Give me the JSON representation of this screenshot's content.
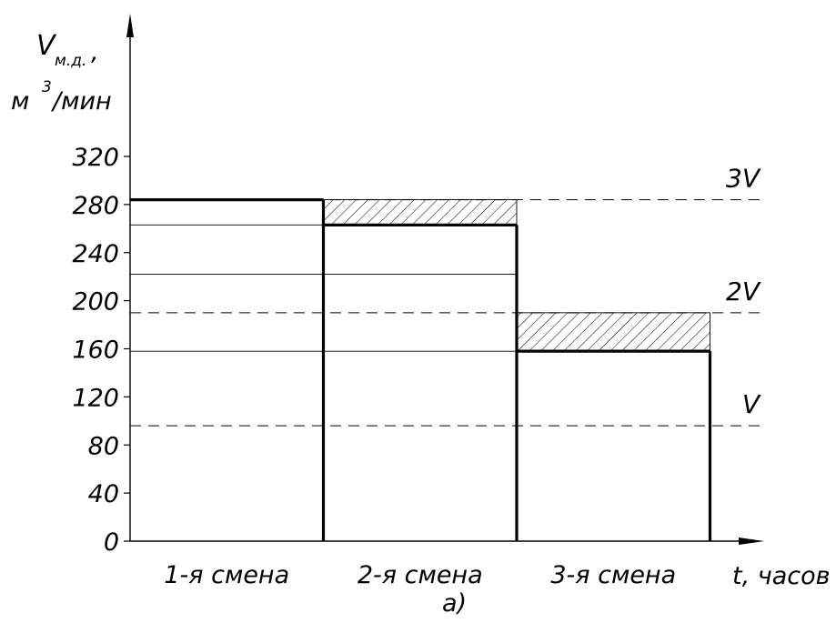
{
  "chart_data": {
    "type": "step",
    "title": "",
    "ylabel": {
      "symbol": "V",
      "subscript": "м.д.",
      "separator": ",",
      "unit_base": "м",
      "unit_exp": "3",
      "unit_rest": "/мин"
    },
    "xlabel": "t, часов",
    "sub_caption": "а)",
    "ylim": [
      0,
      320
    ],
    "y_ticks": [
      0,
      40,
      80,
      120,
      160,
      200,
      240,
      280,
      320
    ],
    "categories": [
      "1-я смена",
      "2-я смена",
      "3-я смена"
    ],
    "values": [
      284,
      263,
      158
    ],
    "reference_lines": [
      {
        "label": "3V",
        "value": 284
      },
      {
        "label": "2V",
        "value": 190
      },
      {
        "label": "V",
        "value": 96
      }
    ],
    "thin_lines": [
      263,
      222,
      158
    ],
    "hatched_regions": [
      {
        "category": "2-я смена",
        "from": 263,
        "to": 284
      },
      {
        "category": "3-я смена",
        "from": 158,
        "to": 190
      }
    ],
    "grid": false,
    "legend": "none"
  }
}
